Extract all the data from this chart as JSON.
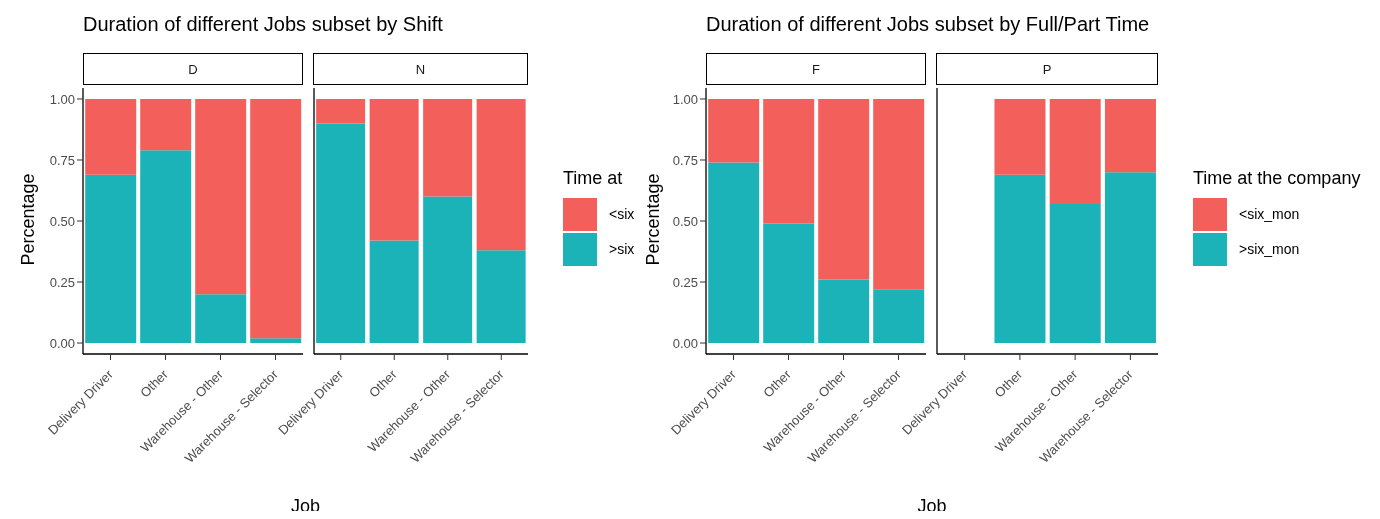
{
  "chart_data": [
    {
      "type": "bar",
      "stacked": true,
      "title": "Duration of different Jobs subset by Shift",
      "subtitle": "D",
      "xlabel": "Job",
      "ylabel": "Percentage",
      "categories": [
        "Delivery Driver",
        "Other",
        "Warehouse - Other",
        "Warehouse - Selector"
      ],
      "series": [
        {
          "color": "#1bb3b7",
          "values": [
            0.69,
            0.79,
            0.2,
            0.02
          ]
        },
        {
          "color": "#f35f5b",
          "values": [
            0.31,
            0.21,
            0.8,
            0.98
          ]
        }
      ],
      "ylim": [
        -0.045,
        1.045
      ],
      "yticks": [
        {
          "value": 0,
          "label": "0.00"
        },
        {
          "value": 0.25,
          "label": "0.25"
        },
        {
          "value": 0.5,
          "label": "0.50"
        },
        {
          "value": 0.75,
          "label": "0.75"
        },
        {
          "value": 1,
          "label": "1.00"
        }
      ],
      "legend": false
    },
    {
      "type": "bar",
      "stacked": true,
      "subtitle": "N",
      "categories": [
        "Delivery Driver",
        "Other",
        "Warehouse - Other",
        "Warehouse - Selector"
      ],
      "series": [
        {
          "name": ">six",
          "color": "#1bb3b7",
          "values": [
            0.9,
            0.42,
            0.6,
            0.38
          ]
        },
        {
          "name": "<six",
          "color": "#f35f5b",
          "values": [
            0.1,
            0.58,
            0.4,
            0.62
          ]
        }
      ],
      "ylim": [
        -0.045,
        1.045
      ],
      "tick_labels": "x",
      "legend": "right",
      "legend_title": "Time at"
    },
    {
      "type": "bar",
      "stacked": true,
      "title": "Duration of different Jobs subset by Full/Part Time",
      "subtitle": "F",
      "xlabel": "Job",
      "ylabel": "Percentage",
      "categories": [
        "Delivery Driver",
        "Other",
        "Warehouse - Other",
        "Warehouse - Selector"
      ],
      "series": [
        {
          "color": "#1bb3b7",
          "values": [
            0.74,
            0.49,
            0.26,
            0.22
          ]
        },
        {
          "color": "#f35f5b",
          "values": [
            0.26,
            0.51,
            0.74,
            0.78
          ]
        }
      ],
      "ylim": [
        -0.045,
        1.045
      ],
      "yticks": [
        {
          "value": 0,
          "label": "0.00"
        },
        {
          "value": 0.25,
          "label": "0.25"
        },
        {
          "value": 0.5,
          "label": "0.50"
        },
        {
          "value": 0.75,
          "label": "0.75"
        },
        {
          "value": 1,
          "label": "1.00"
        }
      ],
      "legend": false
    },
    {
      "type": "bar",
      "stacked": true,
      "subtitle": "P",
      "categories": [
        "Delivery Driver",
        "Other",
        "Warehouse - Other",
        "Warehouse - Selector"
      ],
      "series": [
        {
          "name": ">six_mon",
          "color": "#1bb3b7",
          "values": [
            null,
            0.69,
            0.57,
            0.7
          ]
        },
        {
          "name": "<six_mon",
          "color": "#f35f5b",
          "values": [
            null,
            0.31,
            0.43,
            0.3
          ]
        }
      ],
      "ylim": [
        -0.045,
        1.045
      ],
      "tick_labels": "x",
      "legend": "right",
      "legend_title": "Time at the company"
    }
  ]
}
